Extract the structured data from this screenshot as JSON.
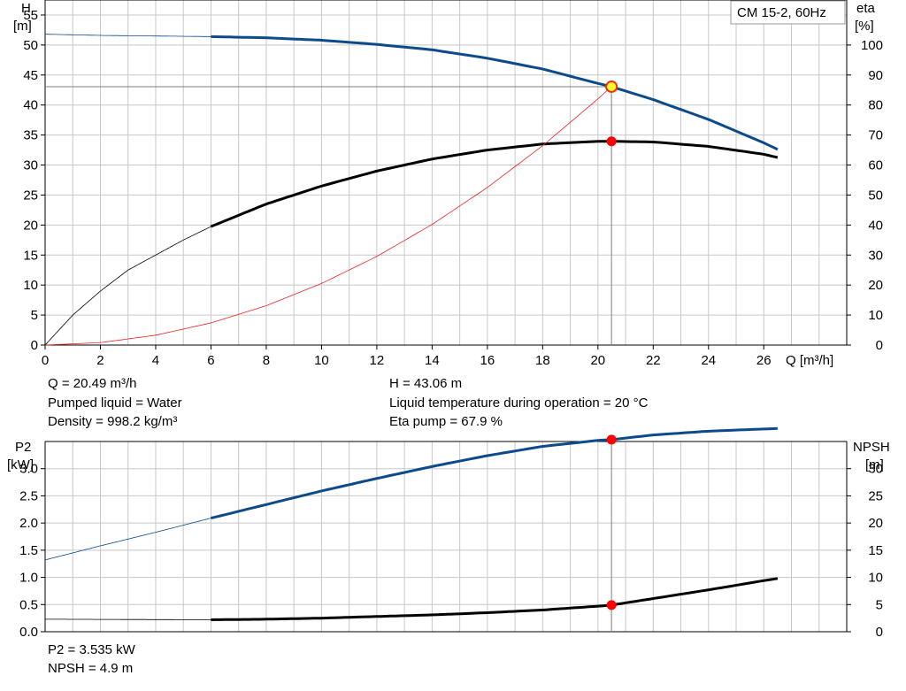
{
  "chart_data": [
    {
      "type": "line",
      "legend_label": "CM 15-2, 60Hz",
      "y_left_label": [
        "H",
        "[m]"
      ],
      "y_right_label": [
        "eta",
        "[%]"
      ],
      "x_label": "Q [m³/h]",
      "xlim": [
        0,
        29
      ],
      "ylim_left": [
        0,
        57.5
      ],
      "ylim_right": [
        0,
        115
      ],
      "x_ticks": [
        "0",
        "2",
        "4",
        "6",
        "8",
        "10",
        "12",
        "14",
        "16",
        "18",
        "20",
        "22",
        "24",
        "26"
      ],
      "y_left_ticks": [
        "0",
        "5",
        "10",
        "15",
        "20",
        "25",
        "30",
        "35",
        "40",
        "45",
        "50",
        "55"
      ],
      "y_right_ticks": [
        "0",
        "10",
        "20",
        "30",
        "40",
        "50",
        "60",
        "70",
        "80",
        "90",
        "100"
      ],
      "series": [
        {
          "key": "H",
          "color": "#0b4a8b",
          "axis": "left",
          "range": [
            6,
            26.5
          ],
          "x": [
            0,
            2,
            4,
            6,
            8,
            10,
            12,
            14,
            16,
            18,
            20,
            20.49,
            22,
            24,
            26,
            26.5
          ],
          "y": [
            51.8,
            51.6,
            51.5,
            51.4,
            51.2,
            50.8,
            50.1,
            49.2,
            47.8,
            46.0,
            43.6,
            43.06,
            40.9,
            37.6,
            33.7,
            32.6
          ]
        },
        {
          "key": "eta",
          "color": "#000000",
          "axis": "right",
          "range": [
            6,
            26.5
          ],
          "x": [
            0,
            1,
            2,
            3,
            4,
            5,
            6,
            8,
            10,
            12,
            14,
            16,
            18,
            20,
            20.49,
            22,
            24,
            26,
            26.5
          ],
          "y": [
            0,
            10,
            18,
            25,
            30,
            35,
            39.5,
            47,
            53,
            58,
            62,
            65,
            67,
            67.9,
            67.9,
            67.7,
            66.2,
            63.6,
            62.5
          ]
        },
        {
          "key": "system_curve",
          "color": "#ee2222",
          "axis": "left",
          "x": [
            0,
            2,
            4,
            6,
            8,
            10,
            12,
            14,
            16,
            18,
            20,
            20.49
          ],
          "y": [
            0,
            0.41,
            1.64,
            3.69,
            6.56,
            10.26,
            14.77,
            20.1,
            26.26,
            33.23,
            41.03,
            43.06
          ]
        }
      ],
      "operating_point": {
        "Q": 20.49,
        "H": 43.06,
        "eta": 67.9
      }
    },
    {
      "type": "line",
      "y_left_label": [
        "P2",
        "[kW]"
      ],
      "y_right_label": [
        "NPSH",
        "[m]"
      ],
      "xlim": [
        0,
        29
      ],
      "ylim_left": [
        0,
        3.5
      ],
      "ylim_right": [
        0,
        35
      ],
      "y_left_ticks": [
        "0.0",
        "0.5",
        "1.0",
        "1.5",
        "2.0",
        "2.5",
        "3.0"
      ],
      "y_right_ticks": [
        "0",
        "5",
        "10",
        "15",
        "20",
        "25",
        "30"
      ],
      "series": [
        {
          "key": "P2",
          "color": "#0b4a8b",
          "axis": "left",
          "range": [
            6,
            26.5
          ],
          "x": [
            0,
            2,
            4,
            6,
            8,
            10,
            12,
            14,
            16,
            18,
            20,
            20.49,
            22,
            24,
            26,
            26.5
          ],
          "y": [
            1.32,
            1.58,
            1.83,
            2.09,
            2.34,
            2.59,
            2.82,
            3.04,
            3.24,
            3.41,
            3.52,
            3.535,
            3.62,
            3.69,
            3.73,
            3.74
          ]
        },
        {
          "key": "NPSH",
          "color": "#000000",
          "axis": "right",
          "range": [
            6,
            26.5
          ],
          "x": [
            0,
            6,
            8,
            10,
            12,
            14,
            16,
            18,
            20,
            20.49,
            22,
            24,
            26,
            26.5
          ],
          "y": [
            2.3,
            2.2,
            2.3,
            2.5,
            2.8,
            3.1,
            3.5,
            4.0,
            4.7,
            4.9,
            6.1,
            7.7,
            9.4,
            9.8
          ]
        }
      ],
      "operating_point": {
        "Q": 20.49,
        "P2": 3.535,
        "NPSH": 4.9
      }
    }
  ],
  "info_top": {
    "q": "Q = 20.49 m³/h",
    "liquid": "Pumped liquid = Water",
    "density": "Density = 998.2 kg/m³",
    "h": "H = 43.06 m",
    "temp": "Liquid temperature during operation = 20 °C",
    "eta": "Eta pump = 67.9 %"
  },
  "info_bottom": {
    "p2": "P2 = 3.535 kW",
    "npsh": "NPSH = 4.9 m"
  },
  "colors": {
    "grid": "#c8c8c8",
    "blue": "#0b4a8b",
    "red_point": "#ff0000",
    "yellow_point": "#ffff33"
  }
}
